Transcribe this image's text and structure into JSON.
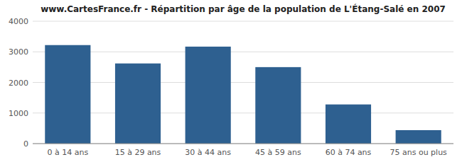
{
  "chart_data": {
    "type": "bar",
    "title": "www.CartesFrance.fr - Répartition par âge de la population de L'Étang-Salé en 2007",
    "categories": [
      "0 à 14 ans",
      "15 à 29 ans",
      "30 à 44 ans",
      "45 à 59 ans",
      "60 à 74 ans",
      "75 ans ou plus"
    ],
    "values": [
      3220,
      2620,
      3170,
      2500,
      1280,
      440
    ],
    "color": "#2e6090",
    "ylim": [
      0,
      4000
    ],
    "yticks": [
      0,
      1000,
      2000,
      3000,
      4000
    ],
    "grid": true
  }
}
